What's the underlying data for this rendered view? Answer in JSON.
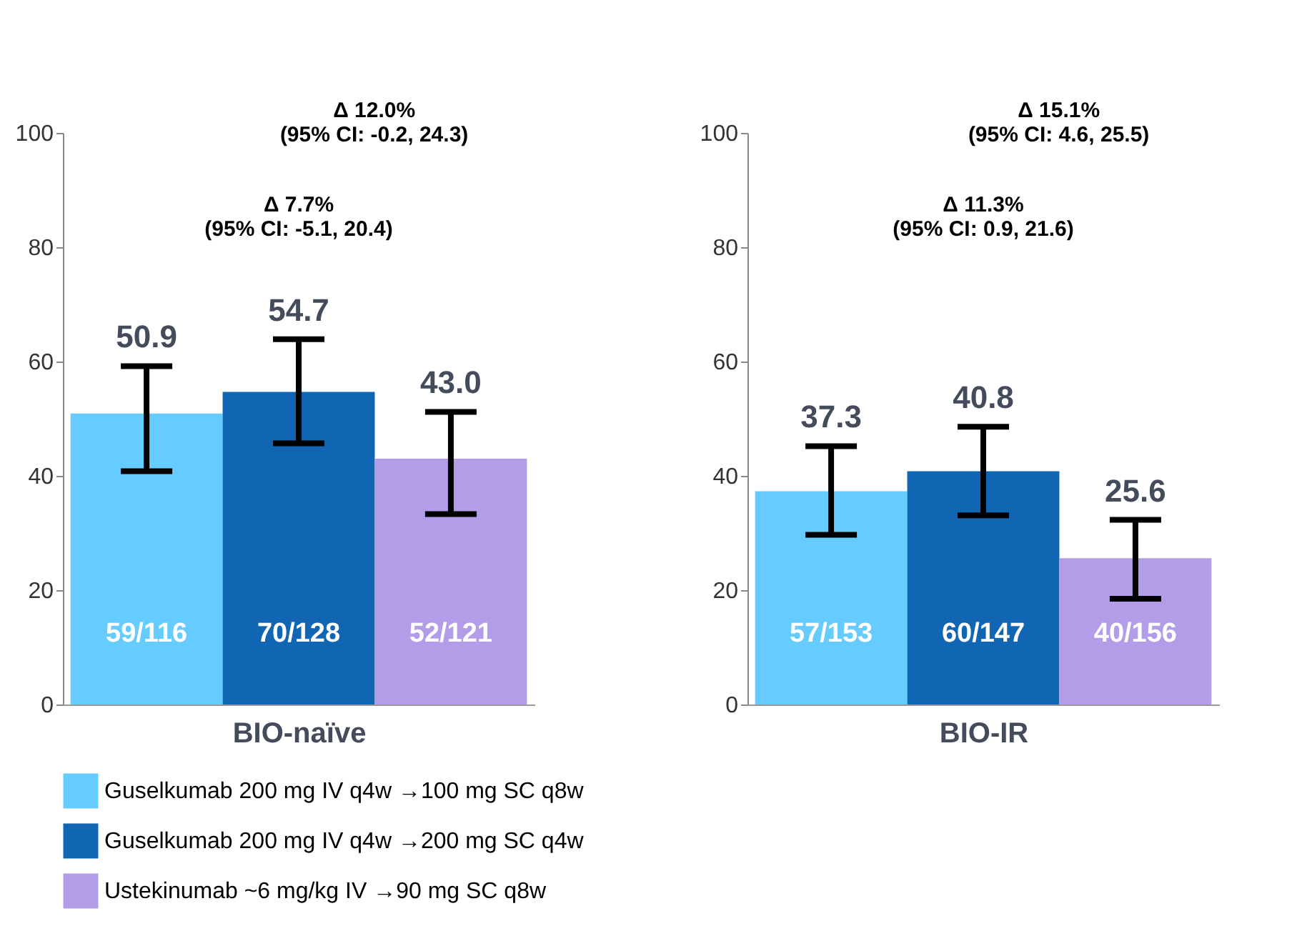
{
  "chart_data": [
    {
      "type": "bar",
      "xlabel": "BIO-naïve",
      "categories": [
        null
      ],
      "ylim": [
        0,
        100
      ],
      "yticks": [
        0,
        20,
        40,
        60,
        80,
        100
      ],
      "legend": "bottom",
      "series": [
        {
          "name": "Guselkumab 200 mg IV q4w →100 mg SC q8w",
          "color": "#66ccff",
          "values": [
            50.9
          ],
          "value_labels": [
            "50.9"
          ],
          "errors": [
            [
              40.8,
              59.2
            ]
          ]
        },
        {
          "name": "Guselkumab 200 mg IV q4w →200 mg SC q4w",
          "color": "#1166b3",
          "values": [
            54.7
          ],
          "value_labels": [
            "54.7"
          ],
          "errors": [
            [
              45.7,
              63.9
            ]
          ]
        },
        {
          "name": "Ustekinumab ~6 mg/kg IV →90 mg SC q8w",
          "color": "#b39ce8",
          "values": [
            43.0
          ],
          "value_labels": [
            "43.0"
          ],
          "errors": [
            [
              33.3,
              51.2
            ]
          ]
        }
      ],
      "annotations": [
        "Δ 12.0%\n(95% CI: -0.2, 24.3)",
        "Δ 7.7%\n(95% CI: -5.1, 20.4)",
        "59/116",
        "70/128",
        "52/121"
      ]
    },
    {
      "type": "bar",
      "xlabel": "BIO-IR",
      "categories": [
        null
      ],
      "ylim": [
        0,
        100
      ],
      "yticks": [
        0,
        20,
        40,
        60,
        80,
        100
      ],
      "series": [
        {
          "color": "#66ccff",
          "values": [
            37.3
          ],
          "value_labels": [
            "37.3"
          ],
          "errors": [
            [
              29.7,
              45.2
            ]
          ]
        },
        {
          "color": "#1166b3",
          "values": [
            40.8
          ],
          "value_labels": [
            "40.8"
          ],
          "errors": [
            [
              33.1,
              48.6
            ]
          ]
        },
        {
          "color": "#b39ce8",
          "values": [
            25.6
          ],
          "value_labels": [
            "25.6"
          ],
          "errors": [
            [
              18.5,
              32.3
            ]
          ]
        }
      ],
      "annotations": [
        "Δ 15.1%\n(95% CI: 4.6, 25.5)",
        "Δ 11.3%\n(95% CI: 0.9, 21.6)",
        "57/153",
        "60/147",
        "40/156"
      ]
    }
  ]
}
